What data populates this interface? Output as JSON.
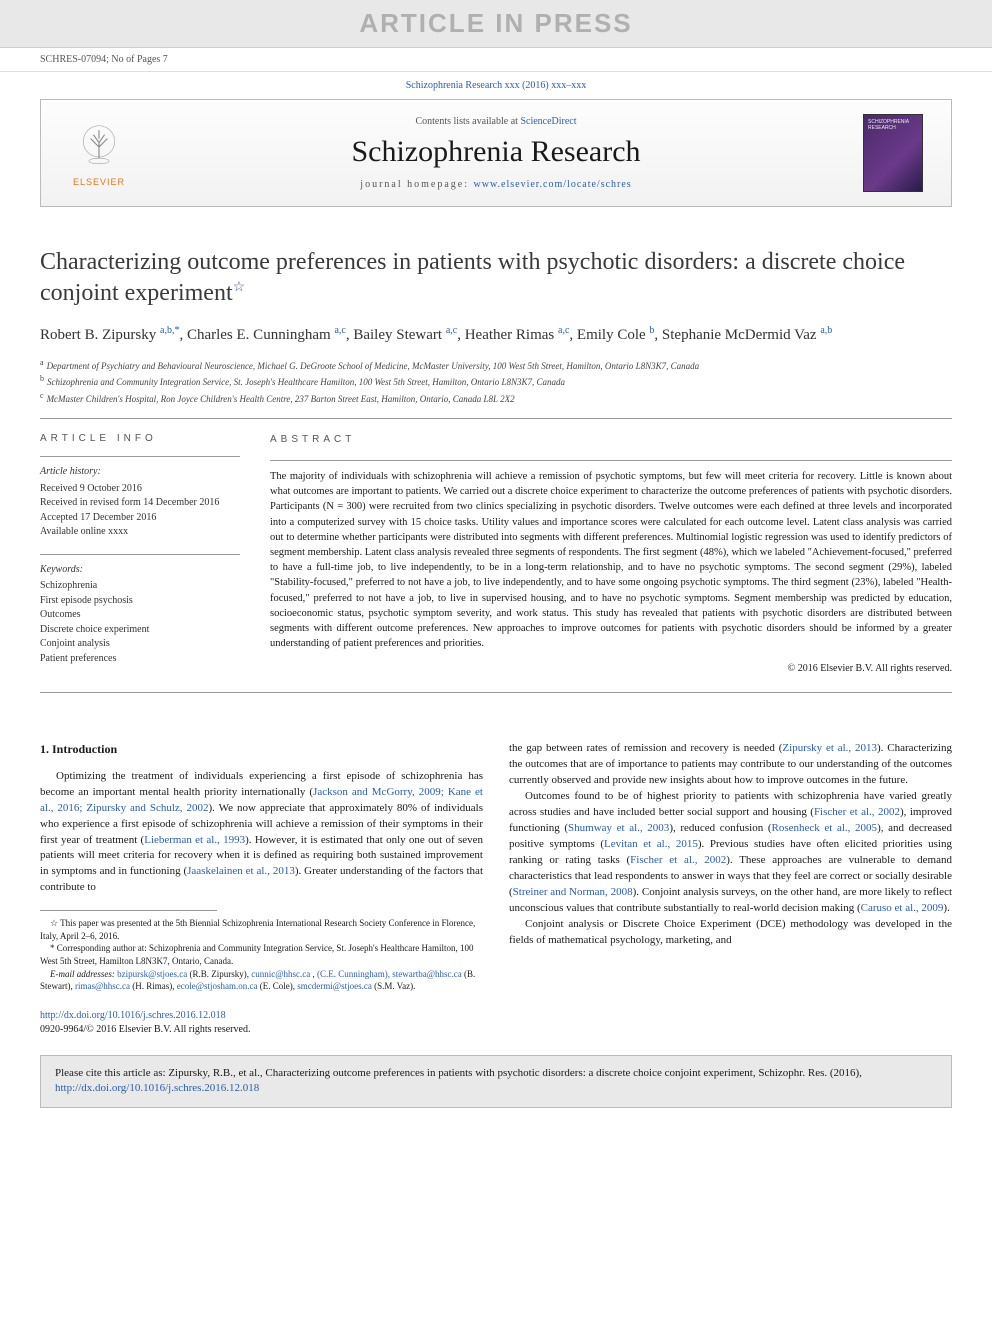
{
  "banner": {
    "aip": "ARTICLE IN PRESS"
  },
  "refLine": "SCHRES-07094; No of Pages 7",
  "journalRef": {
    "prefix": "Schizophrenia Research xxx (2016) xxx–xxx"
  },
  "masthead": {
    "contentsPrefix": "Contents lists available at ",
    "contentsLink": "ScienceDirect",
    "journalTitle": "Schizophrenia Research",
    "homepageLabel": "journal homepage: ",
    "homepageUrl": "www.elsevier.com/locate/schres",
    "publisherLabel": "ELSEVIER"
  },
  "article": {
    "title": "Characterizing outcome preferences in patients with psychotic disorders: a discrete choice conjoint experiment",
    "titleStar": "☆",
    "authors": [
      {
        "name": "Robert B. Zipursky",
        "sup": "a,b,*"
      },
      {
        "name": "Charles E. Cunningham",
        "sup": "a,c"
      },
      {
        "name": "Bailey Stewart",
        "sup": "a,c"
      },
      {
        "name": "Heather Rimas",
        "sup": "a,c"
      },
      {
        "name": "Emily Cole",
        "sup": "b"
      },
      {
        "name": "Stephanie McDermid Vaz",
        "sup": "a,b"
      }
    ],
    "affiliations": [
      {
        "sup": "a",
        "text": "Department of Psychiatry and Behavioural Neuroscience, Michael G. DeGroote School of Medicine, McMaster University, 100 West 5th Street, Hamilton, Ontario L8N3K7, Canada"
      },
      {
        "sup": "b",
        "text": "Schizophrenia and Community Integration Service, St. Joseph's Healthcare Hamilton, 100 West 5th Street, Hamilton, Ontario L8N3K7, Canada"
      },
      {
        "sup": "c",
        "text": "McMaster Children's Hospital, Ron Joyce Children's Health Centre, 237 Barton Street East, Hamilton, Ontario, Canada L8L 2X2"
      }
    ]
  },
  "info": {
    "heading": "ARTICLE INFO",
    "historyLabel": "Article history:",
    "history": [
      "Received 9 October 2016",
      "Received in revised form 14 December 2016",
      "Accepted 17 December 2016",
      "Available online xxxx"
    ],
    "keywordsLabel": "Keywords:",
    "keywords": [
      "Schizophrenia",
      "First episode psychosis",
      "Outcomes",
      "Discrete choice experiment",
      "Conjoint analysis",
      "Patient preferences"
    ]
  },
  "abstract": {
    "heading": "ABSTRACT",
    "text": "The majority of individuals with schizophrenia will achieve a remission of psychotic symptoms, but few will meet criteria for recovery. Little is known about what outcomes are important to patients. We carried out a discrete choice experiment to characterize the outcome preferences of patients with psychotic disorders. Participants (N = 300) were recruited from two clinics specializing in psychotic disorders. Twelve outcomes were each defined at three levels and incorporated into a computerized survey with 15 choice tasks. Utility values and importance scores were calculated for each outcome level. Latent class analysis was carried out to determine whether participants were distributed into segments with different preferences. Multinomial logistic regression was used to identify predictors of segment membership. Latent class analysis revealed three segments of respondents. The first segment (48%), which we labeled \"Achievement-focused,\" preferred to have a full-time job, to live independently, to be in a long-term relationship, and to have no psychotic symptoms. The second segment (29%), labeled \"Stability-focused,\" preferred to not have a job, to live independently, and to have some ongoing psychotic symptoms. The third segment (23%), labeled \"Health-focused,\" preferred to not have a job, to live in supervised housing, and to have no psychotic symptoms. Segment membership was predicted by education, socioeconomic status, psychotic symptom severity, and work status. This study has revealed that patients with psychotic disorders are distributed between segments with different outcome preferences. New approaches to improve outcomes for patients with psychotic disorders should be informed by a greater understanding of patient preferences and priorities.",
    "copyright": "© 2016 Elsevier B.V. All rights reserved."
  },
  "body": {
    "introHeading": "1. Introduction",
    "col1p1a": "Optimizing the treatment of individuals experiencing a first episode of schizophrenia has become an important mental health priority internationally (",
    "col1p1link1": "Jackson and McGorry, 2009; Kane et al., 2016; Zipursky and Schulz, 2002",
    "col1p1b": "). We now appreciate that approximately 80% of individuals who experience a first episode of schizophrenia will achieve a remission of their symptoms in their first year of treatment (",
    "col1p1link2": "Lieberman et al., 1993",
    "col1p1c": "). However, it is estimated that only one out of seven patients will meet criteria for recovery when it is defined as requiring both sustained improvement in symptoms and in functioning (",
    "col1p1link3": "Jaaskelainen et al., 2013",
    "col1p1d": "). Greater understanding of the factors that contribute to",
    "col2p1a": "the gap between rates of remission and recovery is needed (",
    "col2p1link1": "Zipursky et al., 2013",
    "col2p1b": "). Characterizing the outcomes that are of importance to patients may contribute to our understanding of the outcomes currently observed and provide new insights about how to improve outcomes in the future.",
    "col2p2a": "Outcomes found to be of highest priority to patients with schizophrenia have varied greatly across studies and have included better social support and housing (",
    "col2p2link1": "Fischer et al., 2002",
    "col2p2b": "), improved functioning (",
    "col2p2link2": "Shumway et al., 2003",
    "col2p2c": "), reduced confusion (",
    "col2p2link3": "Rosenheck et al., 2005",
    "col2p2d": "), and decreased positive symptoms (",
    "col2p2link4": "Levitan et al., 2015",
    "col2p2e": "). Previous studies have often elicited priorities using ranking or rating tasks (",
    "col2p2link5": "Fischer et al., 2002",
    "col2p2f": "). These approaches are vulnerable to demand characteristics that lead respondents to answer in ways that they feel are correct or socially desirable (",
    "col2p2link6": "Streiner and Norman, 2008",
    "col2p2g": "). Conjoint analysis surveys, on the other hand, are more likely to reflect unconscious values that contribute substantially to real-world decision making (",
    "col2p2link7": "Caruso et al., 2009",
    "col2p2h": ").",
    "col2p3": "Conjoint analysis or Discrete Choice Experiment (DCE) methodology was developed in the fields of mathematical psychology, marketing, and"
  },
  "footnotes": {
    "presented": "☆ This paper was presented at the 5th Biennial Schizophrenia International Research Society Conference in Florence, Italy, April 2–6, 2016.",
    "corresponding": "* Corresponding author at: Schizophrenia and Community Integration Service, St. Joseph's Healthcare Hamilton, 100 West 5th Street, Hamilton L8N3K7, Ontario, Canada.",
    "emailsLabel": "E-mail addresses: ",
    "emails": [
      {
        "addr": "bzipursk@stjoes.ca",
        "who": "(R.B. Zipursky)"
      },
      {
        "addr": "cunnic@hhsc.ca",
        "who": ""
      },
      {
        "addr": "(C.E. Cunningham), stewartba@hhsc.ca",
        "who": "(B. Stewart)"
      },
      {
        "addr": "rimas@hhsc.ca",
        "who": "(H. Rimas)"
      },
      {
        "addr": "ecole@stjosham.on.ca",
        "who": "(E. Cole)"
      },
      {
        "addr": "smcdermi@stjoes.ca",
        "who": "(S.M. Vaz)."
      }
    ]
  },
  "doi": {
    "url": "http://dx.doi.org/10.1016/j.schres.2016.12.018",
    "issn": "0920-9964/© 2016 Elsevier B.V. All rights reserved."
  },
  "citeBox": {
    "text": "Please cite this article as: Zipursky, R.B., et al., Characterizing outcome preferences in patients with psychotic disorders: a discrete choice conjoint experiment, Schizophr. Res. (2016), ",
    "url": "http://dx.doi.org/10.1016/j.schres.2016.12.018"
  },
  "colors": {
    "link": "#2a5db0",
    "bannerBg": "#e8e8e8",
    "bannerText": "#b0b0b0",
    "elsevierOrange": "#e67817"
  }
}
